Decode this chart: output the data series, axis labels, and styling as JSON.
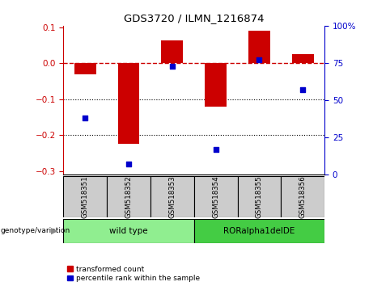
{
  "title": "GDS3720 / ILMN_1216874",
  "samples": [
    "GSM518351",
    "GSM518352",
    "GSM518353",
    "GSM518354",
    "GSM518355",
    "GSM518356"
  ],
  "red_bars": [
    -0.03,
    -0.225,
    0.063,
    -0.12,
    0.092,
    0.025
  ],
  "blue_dots": [
    38,
    7,
    73,
    17,
    77,
    57
  ],
  "ylim_left": [
    -0.31,
    0.105
  ],
  "ylim_right": [
    0,
    100
  ],
  "yticks_left": [
    -0.3,
    -0.2,
    -0.1,
    0.0,
    0.1
  ],
  "yticks_right": [
    0,
    25,
    50,
    75,
    100
  ],
  "ytick_labels_right": [
    "0",
    "25",
    "50",
    "75",
    "100%"
  ],
  "hline_y": 0.0,
  "dotted_lines": [
    -0.1,
    -0.2
  ],
  "groups": [
    {
      "label": "wild type",
      "start": 0,
      "end": 3,
      "color": "#90ee90"
    },
    {
      "label": "RORalpha1delDE",
      "start": 3,
      "end": 6,
      "color": "#44cc44"
    }
  ],
  "genotype_label": "genotype/variation",
  "legend_red": "transformed count",
  "legend_blue": "percentile rank within the sample",
  "bar_color": "#cc0000",
  "dot_color": "#0000cc",
  "hline_color": "#cc0000",
  "sample_box_color": "#cccccc",
  "tick_label_color_left": "#cc0000",
  "tick_label_color_right": "#0000cc"
}
